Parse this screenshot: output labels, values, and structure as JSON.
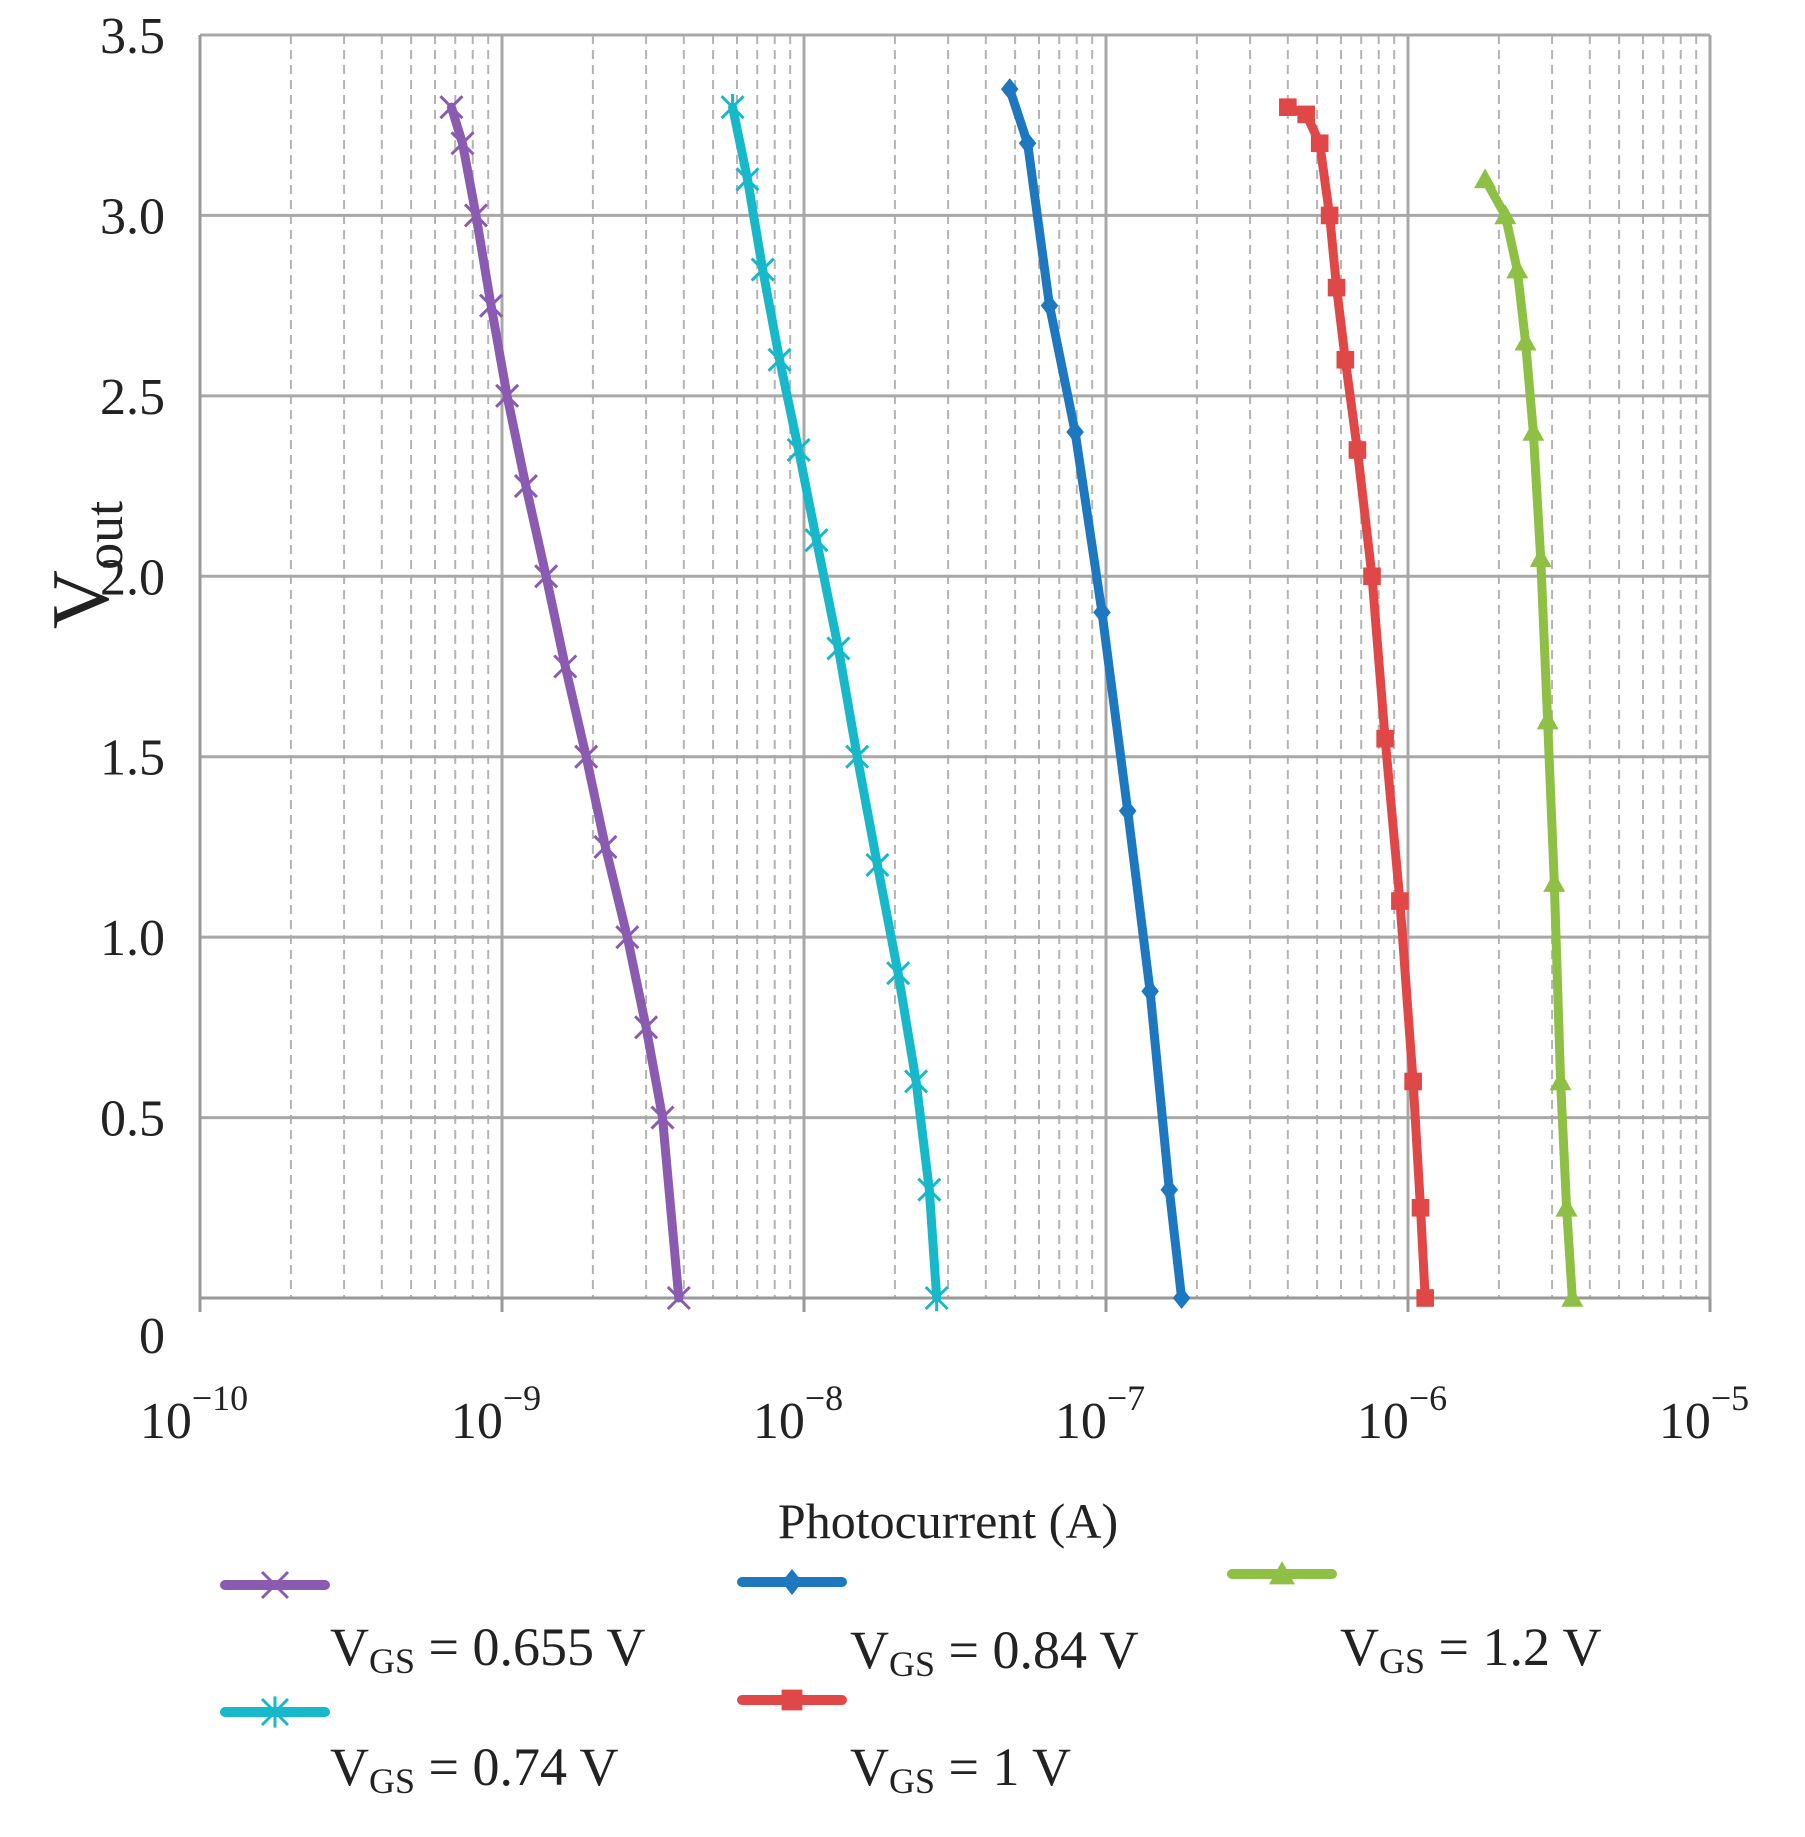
{
  "chart_data": {
    "type": "line",
    "xscale": "log",
    "xlabel": "Photocurrent (A)",
    "ylabel": "V",
    "ylabel_sub": "out",
    "xlim": [
      1e-10,
      1e-05
    ],
    "ylim": [
      0,
      3.5
    ],
    "x_tick_base": "10",
    "x_ticks": [
      {
        "value": 1e-10,
        "exp": "−10"
      },
      {
        "value": 1e-09,
        "exp": "−9"
      },
      {
        "value": 1e-08,
        "exp": "−8"
      },
      {
        "value": 1e-07,
        "exp": "−7"
      },
      {
        "value": 1e-06,
        "exp": "−6"
      },
      {
        "value": 1e-05,
        "exp": "−5"
      }
    ],
    "y_ticks": [
      {
        "value": 0,
        "label": "0"
      },
      {
        "value": 0.5,
        "label": "0.5"
      },
      {
        "value": 1.0,
        "label": "1.0"
      },
      {
        "value": 1.5,
        "label": "1.5"
      },
      {
        "value": 2.0,
        "label": "2.0"
      },
      {
        "value": 2.5,
        "label": "2.5"
      },
      {
        "value": 3.0,
        "label": "3.0"
      },
      {
        "value": 3.5,
        "label": "3.5"
      }
    ],
    "grid": true,
    "legend_position": "bottom",
    "series": [
      {
        "name": "VGS = 0.655 V",
        "label_main": "V",
        "label_sub": "GS",
        "label_rest": " = 0.655 V",
        "color": "#8A5BB0",
        "marker": "x",
        "x": [
          6.8e-10,
          7.4e-10,
          8.2e-10,
          9.2e-10,
          1.04e-09,
          1.2e-09,
          1.4e-09,
          1.62e-09,
          1.9e-09,
          2.2e-09,
          2.6e-09,
          3e-09,
          3.4e-09,
          3.85e-09
        ],
        "y": [
          3.3,
          3.2,
          3.0,
          2.75,
          2.5,
          2.25,
          2.0,
          1.75,
          1.5,
          1.25,
          1.0,
          0.75,
          0.5,
          0.0
        ]
      },
      {
        "name": "VGS = 0.74 V",
        "label_main": "V",
        "label_sub": "GS",
        "label_rest": " = 0.74 V",
        "color": "#17B8C9",
        "marker": "asterisk",
        "x": [
          5.8e-09,
          6.5e-09,
          7.3e-09,
          8.3e-09,
          9.6e-09,
          1.1e-08,
          1.3e-08,
          1.5e-08,
          1.75e-08,
          2.05e-08,
          2.35e-08,
          2.6e-08,
          2.75e-08
        ],
        "y": [
          3.3,
          3.1,
          2.85,
          2.6,
          2.35,
          2.1,
          1.8,
          1.5,
          1.2,
          0.9,
          0.6,
          0.3,
          0.0
        ]
      },
      {
        "name": "VGS = 0.84 V",
        "label_main": "V",
        "label_sub": "GS",
        "label_rest": " = 0.84 V",
        "color": "#1E78C0",
        "marker": "diamond",
        "x": [
          4.8e-08,
          5.5e-08,
          6.5e-08,
          7.9e-08,
          9.7e-08,
          1.18e-07,
          1.4e-07,
          1.62e-07,
          1.78e-07
        ],
        "y": [
          3.35,
          3.2,
          2.75,
          2.4,
          1.9,
          1.35,
          0.85,
          0.3,
          0.0
        ]
      },
      {
        "name": "VGS = 1 V",
        "label_main": "V",
        "label_sub": "GS",
        "label_rest": " = 1 V",
        "color": "#E04848",
        "marker": "square",
        "x": [
          4e-07,
          4.6e-07,
          5.1e-07,
          5.5e-07,
          5.8e-07,
          6.2e-07,
          6.8e-07,
          7.6e-07,
          8.4e-07,
          9.4e-07,
          1.04e-06,
          1.1e-06,
          1.14e-06
        ],
        "y": [
          3.3,
          3.28,
          3.2,
          3.0,
          2.8,
          2.6,
          2.35,
          2.0,
          1.55,
          1.1,
          0.6,
          0.25,
          0.0
        ]
      },
      {
        "name": "VGS = 1.2 V",
        "label_main": "V",
        "label_sub": "GS",
        "label_rest": " = 1.2 V",
        "color": "#8DC044",
        "marker": "triangle",
        "x": [
          1.8e-06,
          2.1e-06,
          2.3e-06,
          2.45e-06,
          2.6e-06,
          2.75e-06,
          2.9e-06,
          3.05e-06,
          3.2e-06,
          3.35e-06,
          3.5e-06
        ],
        "y": [
          3.1,
          3.0,
          2.85,
          2.65,
          2.4,
          2.05,
          1.6,
          1.15,
          0.6,
          0.25,
          0.0
        ]
      }
    ]
  }
}
